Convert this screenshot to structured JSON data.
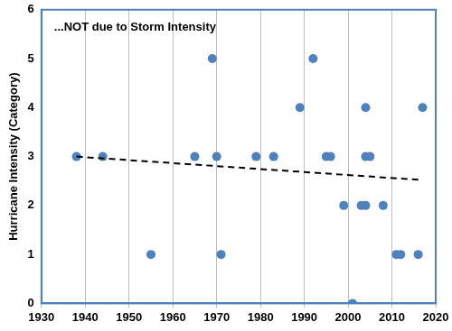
{
  "chart_data": {
    "type": "scatter",
    "title": "...NOT due to Storm Intensity",
    "y_label": "Hurricane Intensity (Category)",
    "xlim": [
      1930,
      2020
    ],
    "xticks": [
      1930,
      1940,
      1950,
      1960,
      1970,
      1980,
      1990,
      2000,
      2010,
      2020
    ],
    "ylim": [
      0,
      6
    ],
    "yticks": [
      0,
      1,
      2,
      3,
      4,
      5,
      6
    ],
    "grid": "x",
    "series": [
      {
        "type": "scatter",
        "color": "#4f81bd",
        "marker": "circle",
        "x": [
          1938,
          1944,
          1955,
          1965,
          1969,
          1970,
          1971,
          1979,
          1983,
          1989,
          1992,
          1995,
          1996,
          1999,
          2001,
          2003,
          2004,
          2004,
          2004,
          2005,
          2008,
          2011,
          2012,
          2016,
          2017
        ],
        "values": [
          3,
          3,
          1,
          3,
          5,
          3,
          1,
          3,
          3,
          4,
          5,
          3,
          3,
          2,
          0,
          2,
          4,
          3,
          2,
          3,
          2,
          1,
          1,
          1,
          4
        ]
      },
      {
        "type": "line",
        "color": "#000000",
        "line_style": "dashed",
        "x": [
          1938,
          2017
        ],
        "values": [
          3.0,
          2.52
        ]
      }
    ]
  }
}
